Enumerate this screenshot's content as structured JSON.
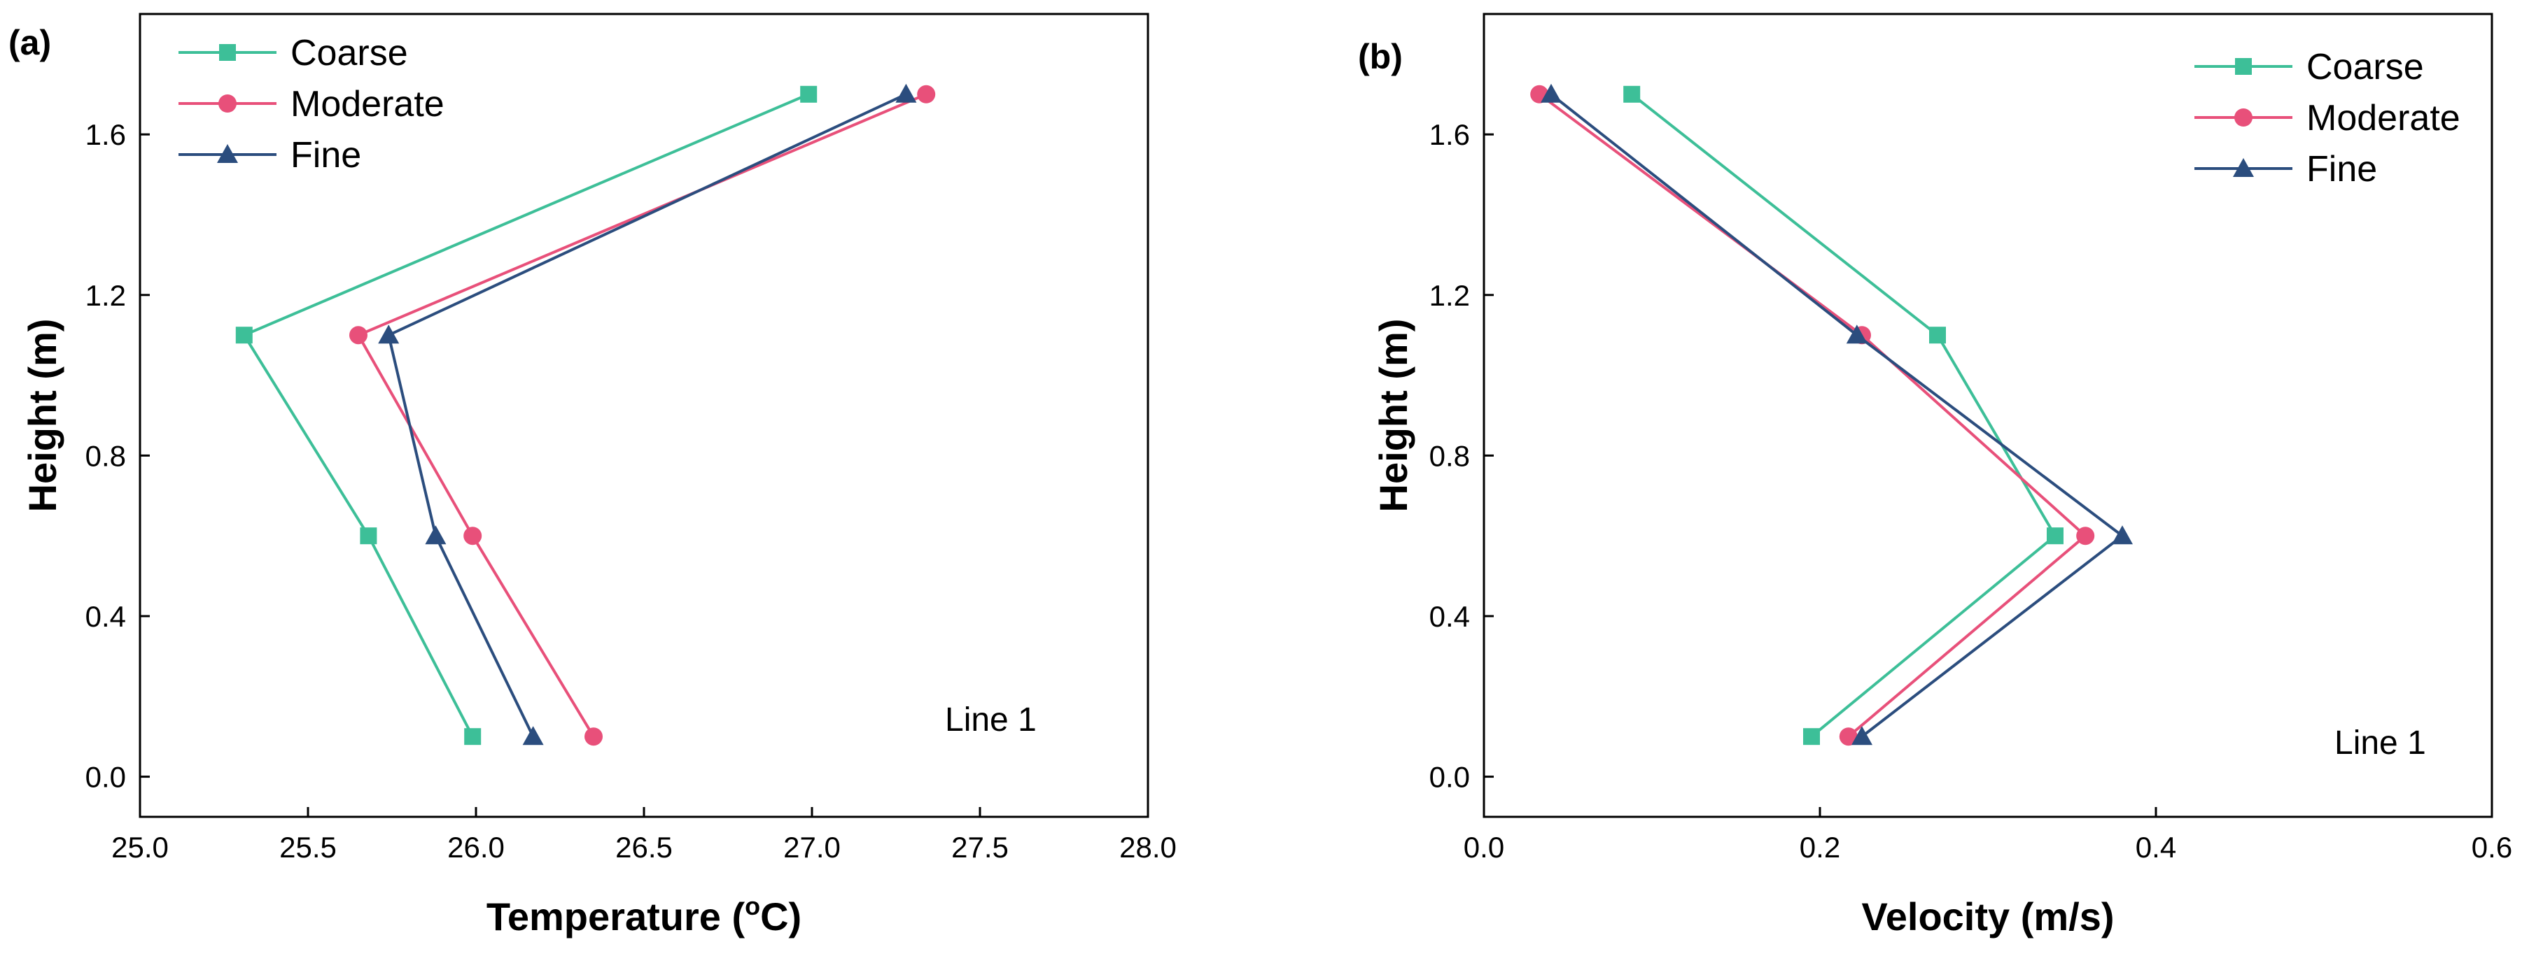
{
  "chart_data": [
    {
      "type": "line",
      "panel_label": "(a)",
      "xlabel": "Temperature (",
      "xlabel_sup": "o",
      "xlabel_end": "C)",
      "ylabel": "Height (m)",
      "xlim": [
        25.0,
        28.0
      ],
      "ylim": [
        -0.1,
        1.9
      ],
      "xticks": [
        "25.0",
        "25.5",
        "26.0",
        "26.5",
        "27.0",
        "27.5",
        "28.0"
      ],
      "xtick_values": [
        25.0,
        25.5,
        26.0,
        26.5,
        27.0,
        27.5,
        28.0
      ],
      "yticks": [
        "0.0",
        "0.4",
        "0.8",
        "1.2",
        "1.6"
      ],
      "ytick_values": [
        0.0,
        0.4,
        0.8,
        1.2,
        1.6
      ],
      "legend_position": "top-left",
      "annotation": "Line 1",
      "grid": false,
      "series": [
        {
          "name": "Coarse",
          "color": "#3dbf98",
          "marker": "square",
          "points": [
            [
              26.99,
              1.7
            ],
            [
              25.31,
              1.1
            ],
            [
              25.68,
              0.6
            ],
            [
              25.99,
              0.1
            ]
          ]
        },
        {
          "name": "Moderate",
          "color": "#e8507a",
          "marker": "circle",
          "points": [
            [
              27.34,
              1.7
            ],
            [
              25.65,
              1.1
            ],
            [
              25.99,
              0.6
            ],
            [
              26.35,
              0.1
            ]
          ]
        },
        {
          "name": "Fine",
          "color": "#2b4d7e",
          "marker": "triangle",
          "points": [
            [
              27.28,
              1.7
            ],
            [
              25.74,
              1.1
            ],
            [
              25.88,
              0.6
            ],
            [
              26.17,
              0.1
            ]
          ]
        }
      ]
    },
    {
      "type": "line",
      "panel_label": "(b)",
      "xlabel": "Velocity (m/s)",
      "ylabel": "Height (m)",
      "xlim": [
        0.0,
        0.6
      ],
      "ylim": [
        -0.1,
        1.9
      ],
      "xticks": [
        "0.0",
        "0.2",
        "0.4",
        "0.6"
      ],
      "xtick_values": [
        0.0,
        0.2,
        0.4,
        0.6
      ],
      "yticks": [
        "0.0",
        "0.4",
        "0.8",
        "1.2",
        "1.6"
      ],
      "ytick_values": [
        0.0,
        0.4,
        0.8,
        1.2,
        1.6
      ],
      "legend_position": "top-right",
      "annotation": "Line 1",
      "grid": false,
      "series": [
        {
          "name": "Coarse",
          "color": "#3dbf98",
          "marker": "square",
          "points": [
            [
              0.088,
              1.7
            ],
            [
              0.27,
              1.1
            ],
            [
              0.34,
              0.6
            ],
            [
              0.195,
              0.1
            ]
          ]
        },
        {
          "name": "Moderate",
          "color": "#e8507a",
          "marker": "circle",
          "points": [
            [
              0.033,
              1.7
            ],
            [
              0.225,
              1.1
            ],
            [
              0.358,
              0.6
            ],
            [
              0.217,
              0.1
            ]
          ]
        },
        {
          "name": "Fine",
          "color": "#2b4d7e",
          "marker": "triangle",
          "points": [
            [
              0.04,
              1.7
            ],
            [
              0.222,
              1.1
            ],
            [
              0.38,
              0.6
            ],
            [
              0.225,
              0.1
            ]
          ]
        }
      ]
    }
  ]
}
